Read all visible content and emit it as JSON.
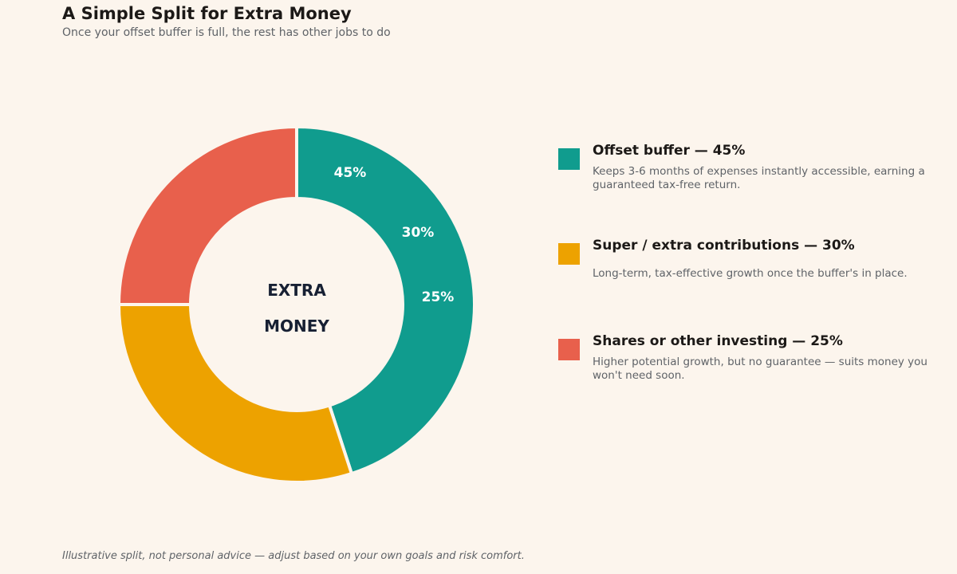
{
  "title": "A Simple Split for Extra Money",
  "subtitle": "Once your offset buffer is full, the rest has other jobs to do",
  "center_label_lines": [
    "EXTRA",
    "MONEY"
  ],
  "footnote": "Illustrative split, not personal advice — adjust based on your own goals and risk comfort.",
  "chart_data": {
    "type": "pie",
    "style": "donut",
    "categories": [
      "Offset buffer",
      "Super / extra contributions",
      "Shares or other investing"
    ],
    "values": [
      45,
      30,
      25
    ],
    "unit": "%",
    "slice_labels": [
      "45%",
      "30%",
      "25%"
    ],
    "colors": [
      "#109c8e",
      "#eda200",
      "#e8604c"
    ],
    "legend_position": "right"
  },
  "legend": [
    {
      "title": "Offset buffer — 45%",
      "description": "Keeps 3-6 months of expenses instantly accessible, earning a guaranteed tax-free return.",
      "color": "#109c8e"
    },
    {
      "title": "Super / extra contributions — 30%",
      "description": "Long-term, tax-effective growth once the buffer's in place.",
      "color": "#eda200"
    },
    {
      "title": "Shares or other investing — 25%",
      "description": "Higher potential growth, but no guarantee — suits money you won't need soon.",
      "color": "#e8604c"
    }
  ]
}
